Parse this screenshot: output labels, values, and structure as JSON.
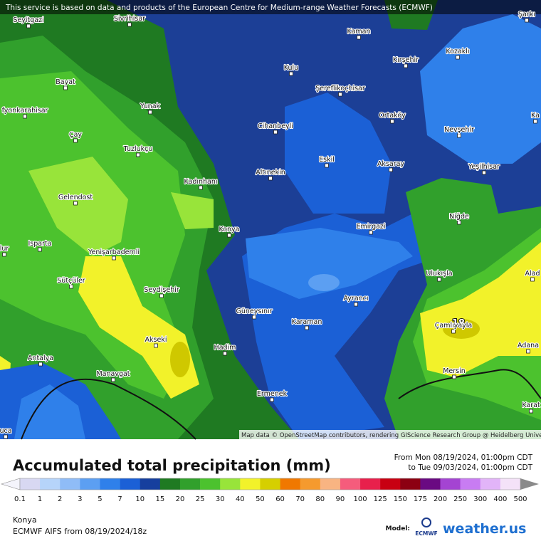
{
  "banner": "This service is based on data and products of the European Centre for Medium-range Weather Forecasts (ECMWF)",
  "attribution": "Map data © OpenStreetMap contributors, rendering GIScience Research Group @ Heidelberg University",
  "marker": "18",
  "cities": [
    "Seyitgazi",
    "Sivrihisar",
    "Kaman",
    "Şarkı",
    "Kozaklı",
    "Kırşehir",
    "Kulu",
    "Bayat",
    "Şereflikoçhisar",
    "fyonkarahisar",
    "Yunak",
    "Ortaköy",
    "Ka",
    "Cihanbeyli",
    "Nevşehir",
    "Çay",
    "Tuzlukçu",
    "Eskil",
    "Aksaray",
    "Yeşilhisar",
    "Altınekin",
    "Kadınhanı",
    "Gelendost",
    "Niğde",
    "Konya",
    "Emirgazi",
    "Isparta",
    "lur",
    "Yenişarbademli",
    "Ulukışla",
    "Alad",
    "Sütçüler",
    "Seydişehir",
    "Ayrancı",
    "Güneysınır",
    "Karaman",
    "Çamlıyayla",
    "Akseki",
    "Adana",
    "Hadim",
    "Antalya",
    "Manavgat",
    "Mersin",
    "Ermenek",
    "Karat",
    "uca"
  ],
  "footer": {
    "title": "Accumulated total precipitation (mm)",
    "from": "From Mon 08/19/2024, 01:00pm CDT",
    "to": "to Tue 09/03/2024, 01:00pm CDT",
    "location": "Konya",
    "model_run": "ECMWF AIFS from  08/19/2024/18z",
    "model_label": "Model:",
    "model_logo": "ECMWF",
    "brand": "weather.us"
  },
  "legend": {
    "under_color": "#f4f4fb",
    "over_color": "#8a8a8a",
    "ticks": [
      0.1,
      1,
      2,
      3,
      5,
      7,
      10,
      15,
      20,
      25,
      30,
      40,
      50,
      60,
      70,
      80,
      90,
      100,
      125,
      150,
      175,
      200,
      250,
      300,
      400,
      500
    ],
    "colors": [
      "#d8d8f2",
      "#b6d4fa",
      "#8fbcf7",
      "#5c9ff2",
      "#2f80ea",
      "#1b60d6",
      "#163f9e",
      "#1f7a22",
      "#31a02c",
      "#4cc22e",
      "#98e43a",
      "#f2f22a",
      "#d6cf00",
      "#f07800",
      "#f59a2e",
      "#f8b482",
      "#f55c7c",
      "#e8204c",
      "#c80012",
      "#8c0012",
      "#6a0a82",
      "#a444d2",
      "#c87cf2",
      "#e2b4f8",
      "#f4e2f8"
    ]
  }
}
